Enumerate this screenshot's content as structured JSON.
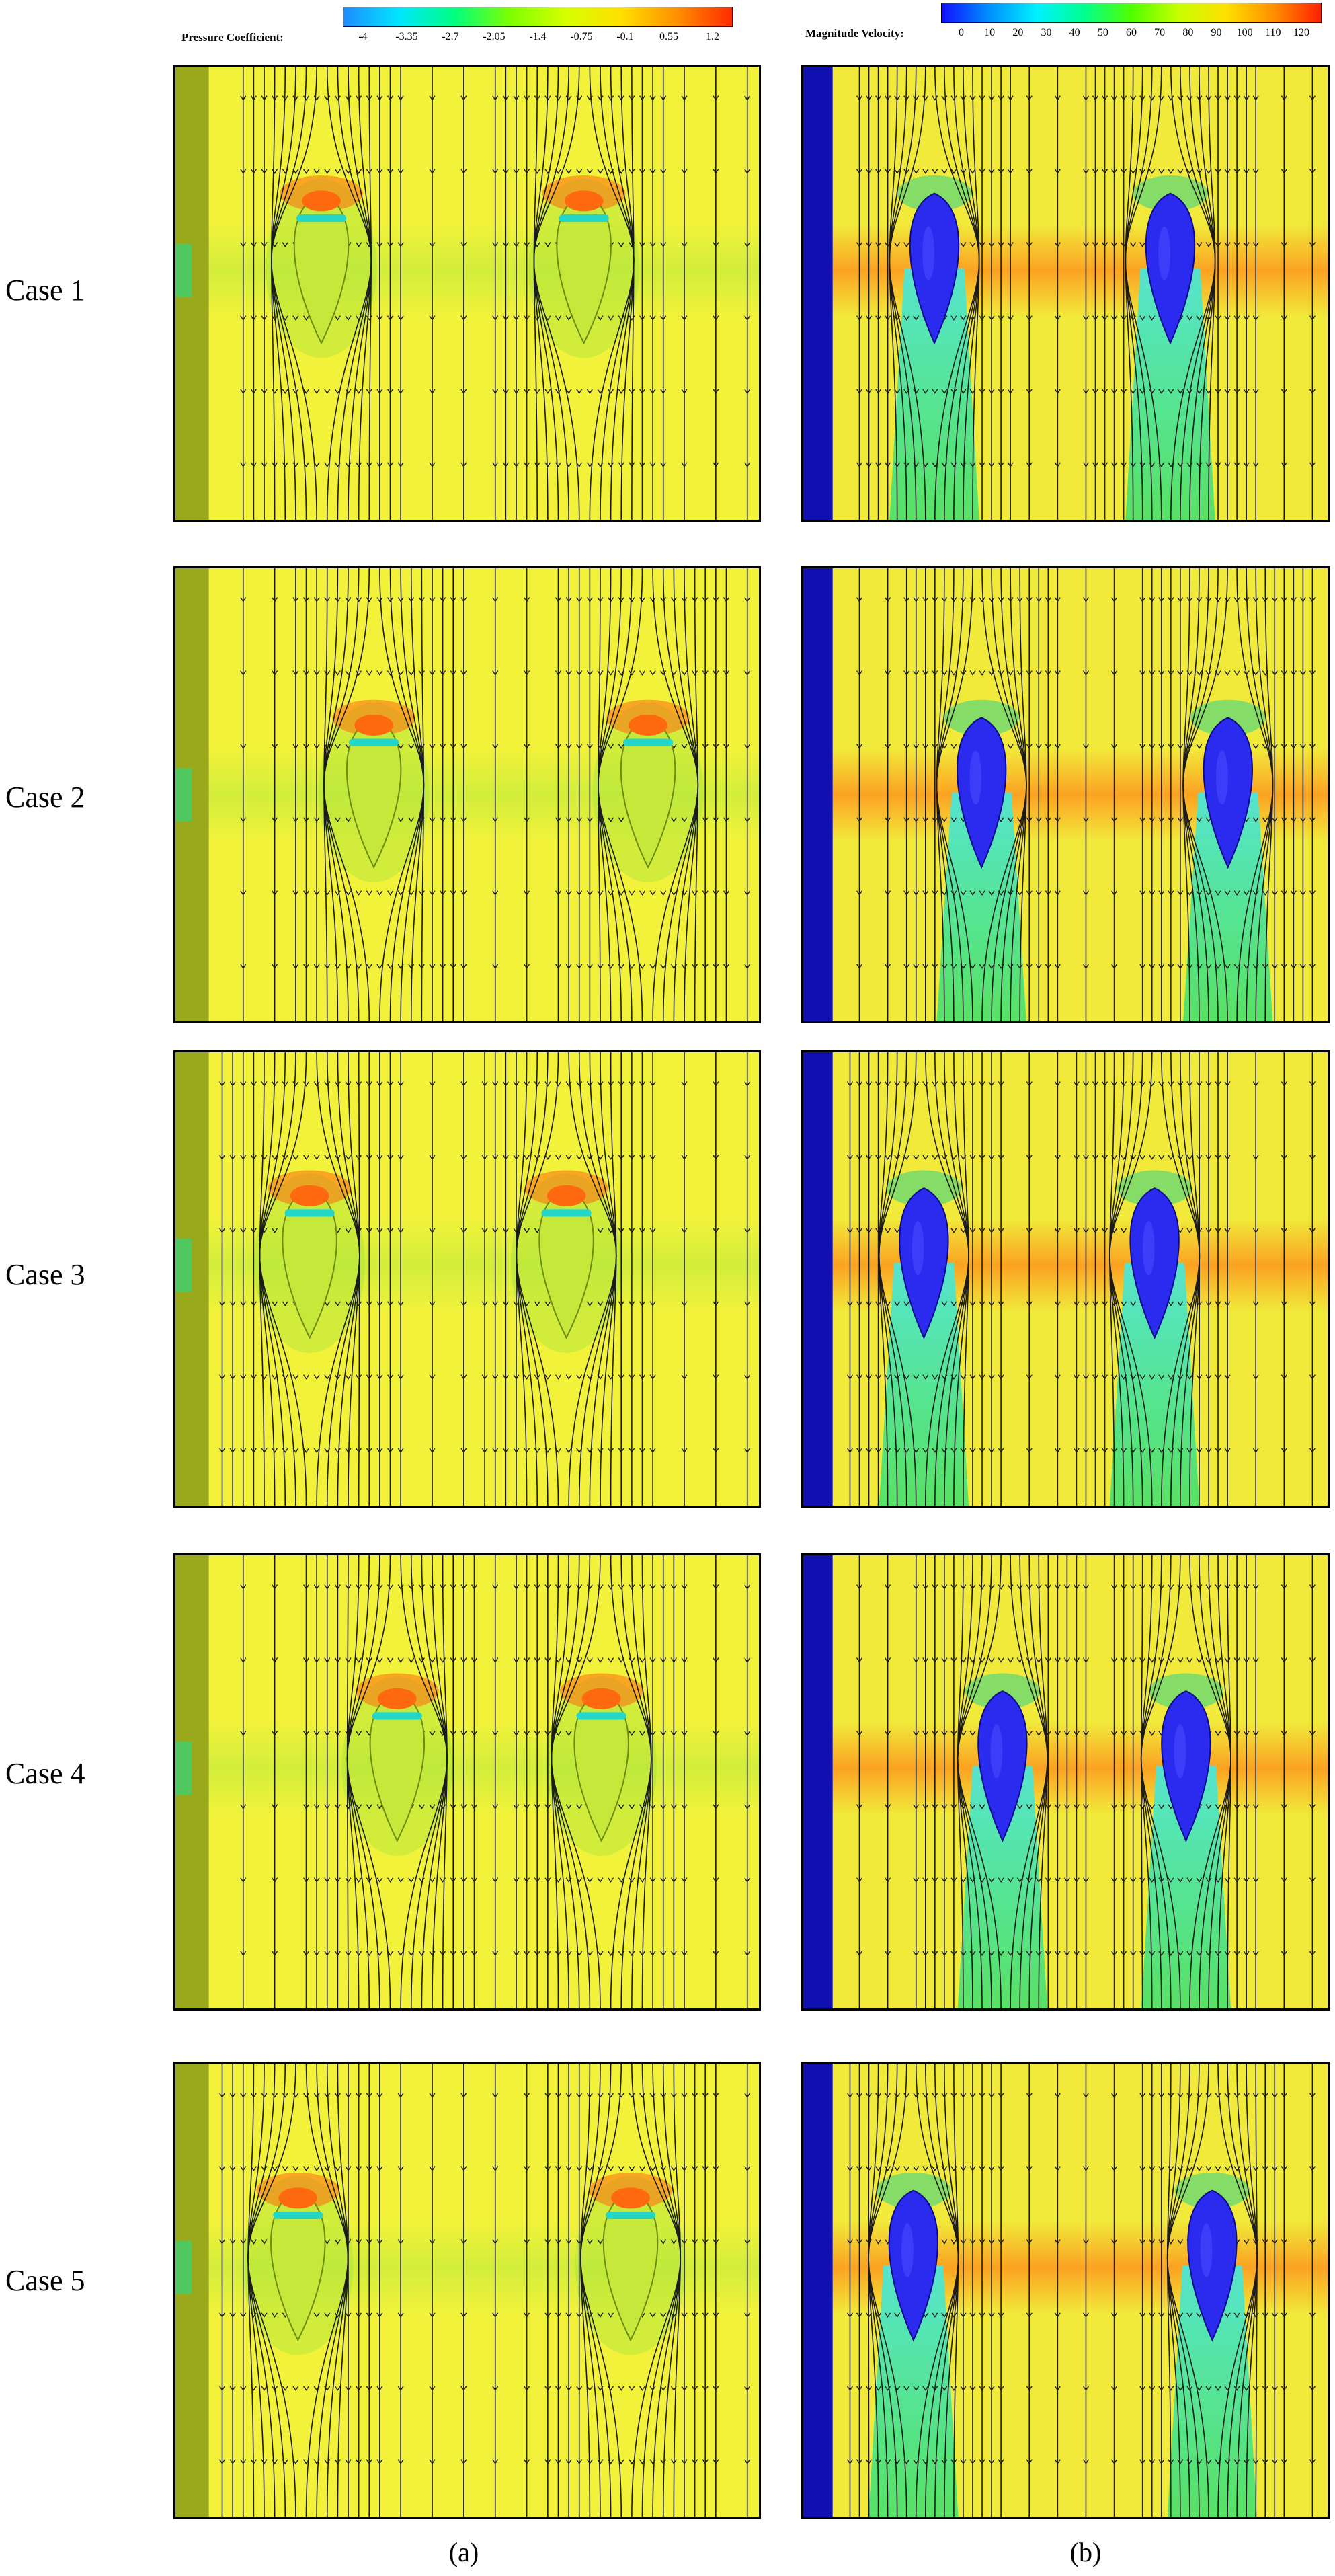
{
  "legends": {
    "pressure": {
      "title": "Pressure Coefficient:",
      "ticks": [
        "-4",
        "-3.35",
        "-2.7",
        "-2.05",
        "-1.4",
        "-0.75",
        "-0.1",
        "0.55",
        "1.2"
      ],
      "colors": [
        "#1e8cff",
        "#00e6ff",
        "#00ff80",
        "#7dff00",
        "#d6ff00",
        "#ffe000",
        "#ff9000",
        "#ff2a00"
      ]
    },
    "velocity": {
      "title": "Magnitude Velocity:",
      "ticks": [
        "0",
        "10",
        "20",
        "30",
        "40",
        "50",
        "60",
        "70",
        "80",
        "90",
        "100",
        "110",
        "120"
      ],
      "colors": [
        "#1010ff",
        "#0090ff",
        "#00f0ff",
        "#00ff90",
        "#50ff00",
        "#c8ff00",
        "#ffe000",
        "#ff9000",
        "#ff2000"
      ]
    }
  },
  "cases": [
    {
      "label": "Case 1"
    },
    {
      "label": "Case 2"
    },
    {
      "label": "Case 3"
    },
    {
      "label": "Case 4"
    },
    {
      "label": "Case 5"
    }
  ],
  "columns": [
    {
      "label": "(a)"
    },
    {
      "label": "(b)"
    }
  ],
  "colors": {
    "pressure_field": "#f2f23a",
    "velocity_field": "#f1ea3a",
    "hull_pressure": "#c6e83a",
    "hull_velocity": "#2b2bf0",
    "nose": "#ff6a10",
    "band": "#24d6c8",
    "wall_velocity": "#1010b0",
    "wake_velocity": "#4de6d8",
    "high_speed": "#ff8a1a",
    "streamline": "#1a1a1a"
  }
}
